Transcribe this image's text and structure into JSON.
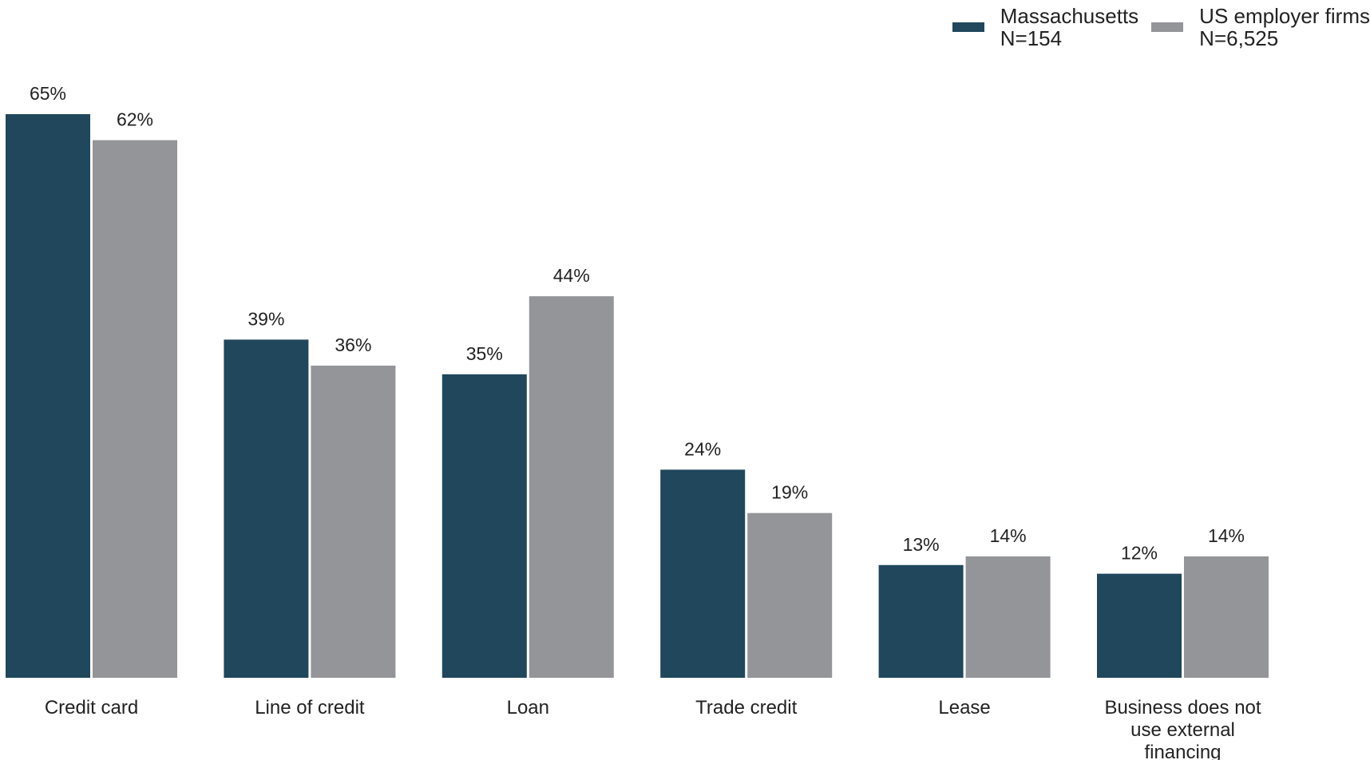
{
  "chart_data": {
    "type": "bar",
    "categories": [
      "Credit card",
      "Line of credit",
      "Loan",
      "Trade credit",
      "Lease",
      "Business does not use external financing"
    ],
    "category_lines": [
      [
        "Credit card"
      ],
      [
        "Line of credit"
      ],
      [
        "Loan"
      ],
      [
        "Trade credit"
      ],
      [
        "Lease"
      ],
      [
        "Business does not",
        "use external",
        "financing"
      ]
    ],
    "series": [
      {
        "name": "Massachusetts",
        "sublabel": "N=154",
        "values": [
          65,
          39,
          35,
          24,
          13,
          12
        ],
        "labels": [
          "65%",
          "39%",
          "35%",
          "24%",
          "13%",
          "12%"
        ],
        "color": "#20475c"
      },
      {
        "name": "US employer firms",
        "sublabel": "N=6,525",
        "values": [
          62,
          36,
          44,
          19,
          14,
          14
        ],
        "labels": [
          "62%",
          "36%",
          "44%",
          "19%",
          "14%",
          "14%"
        ],
        "color": "#939598"
      }
    ],
    "ylim": [
      0,
      65
    ],
    "unit": "%",
    "grid": false,
    "legend_position": "top-right"
  }
}
